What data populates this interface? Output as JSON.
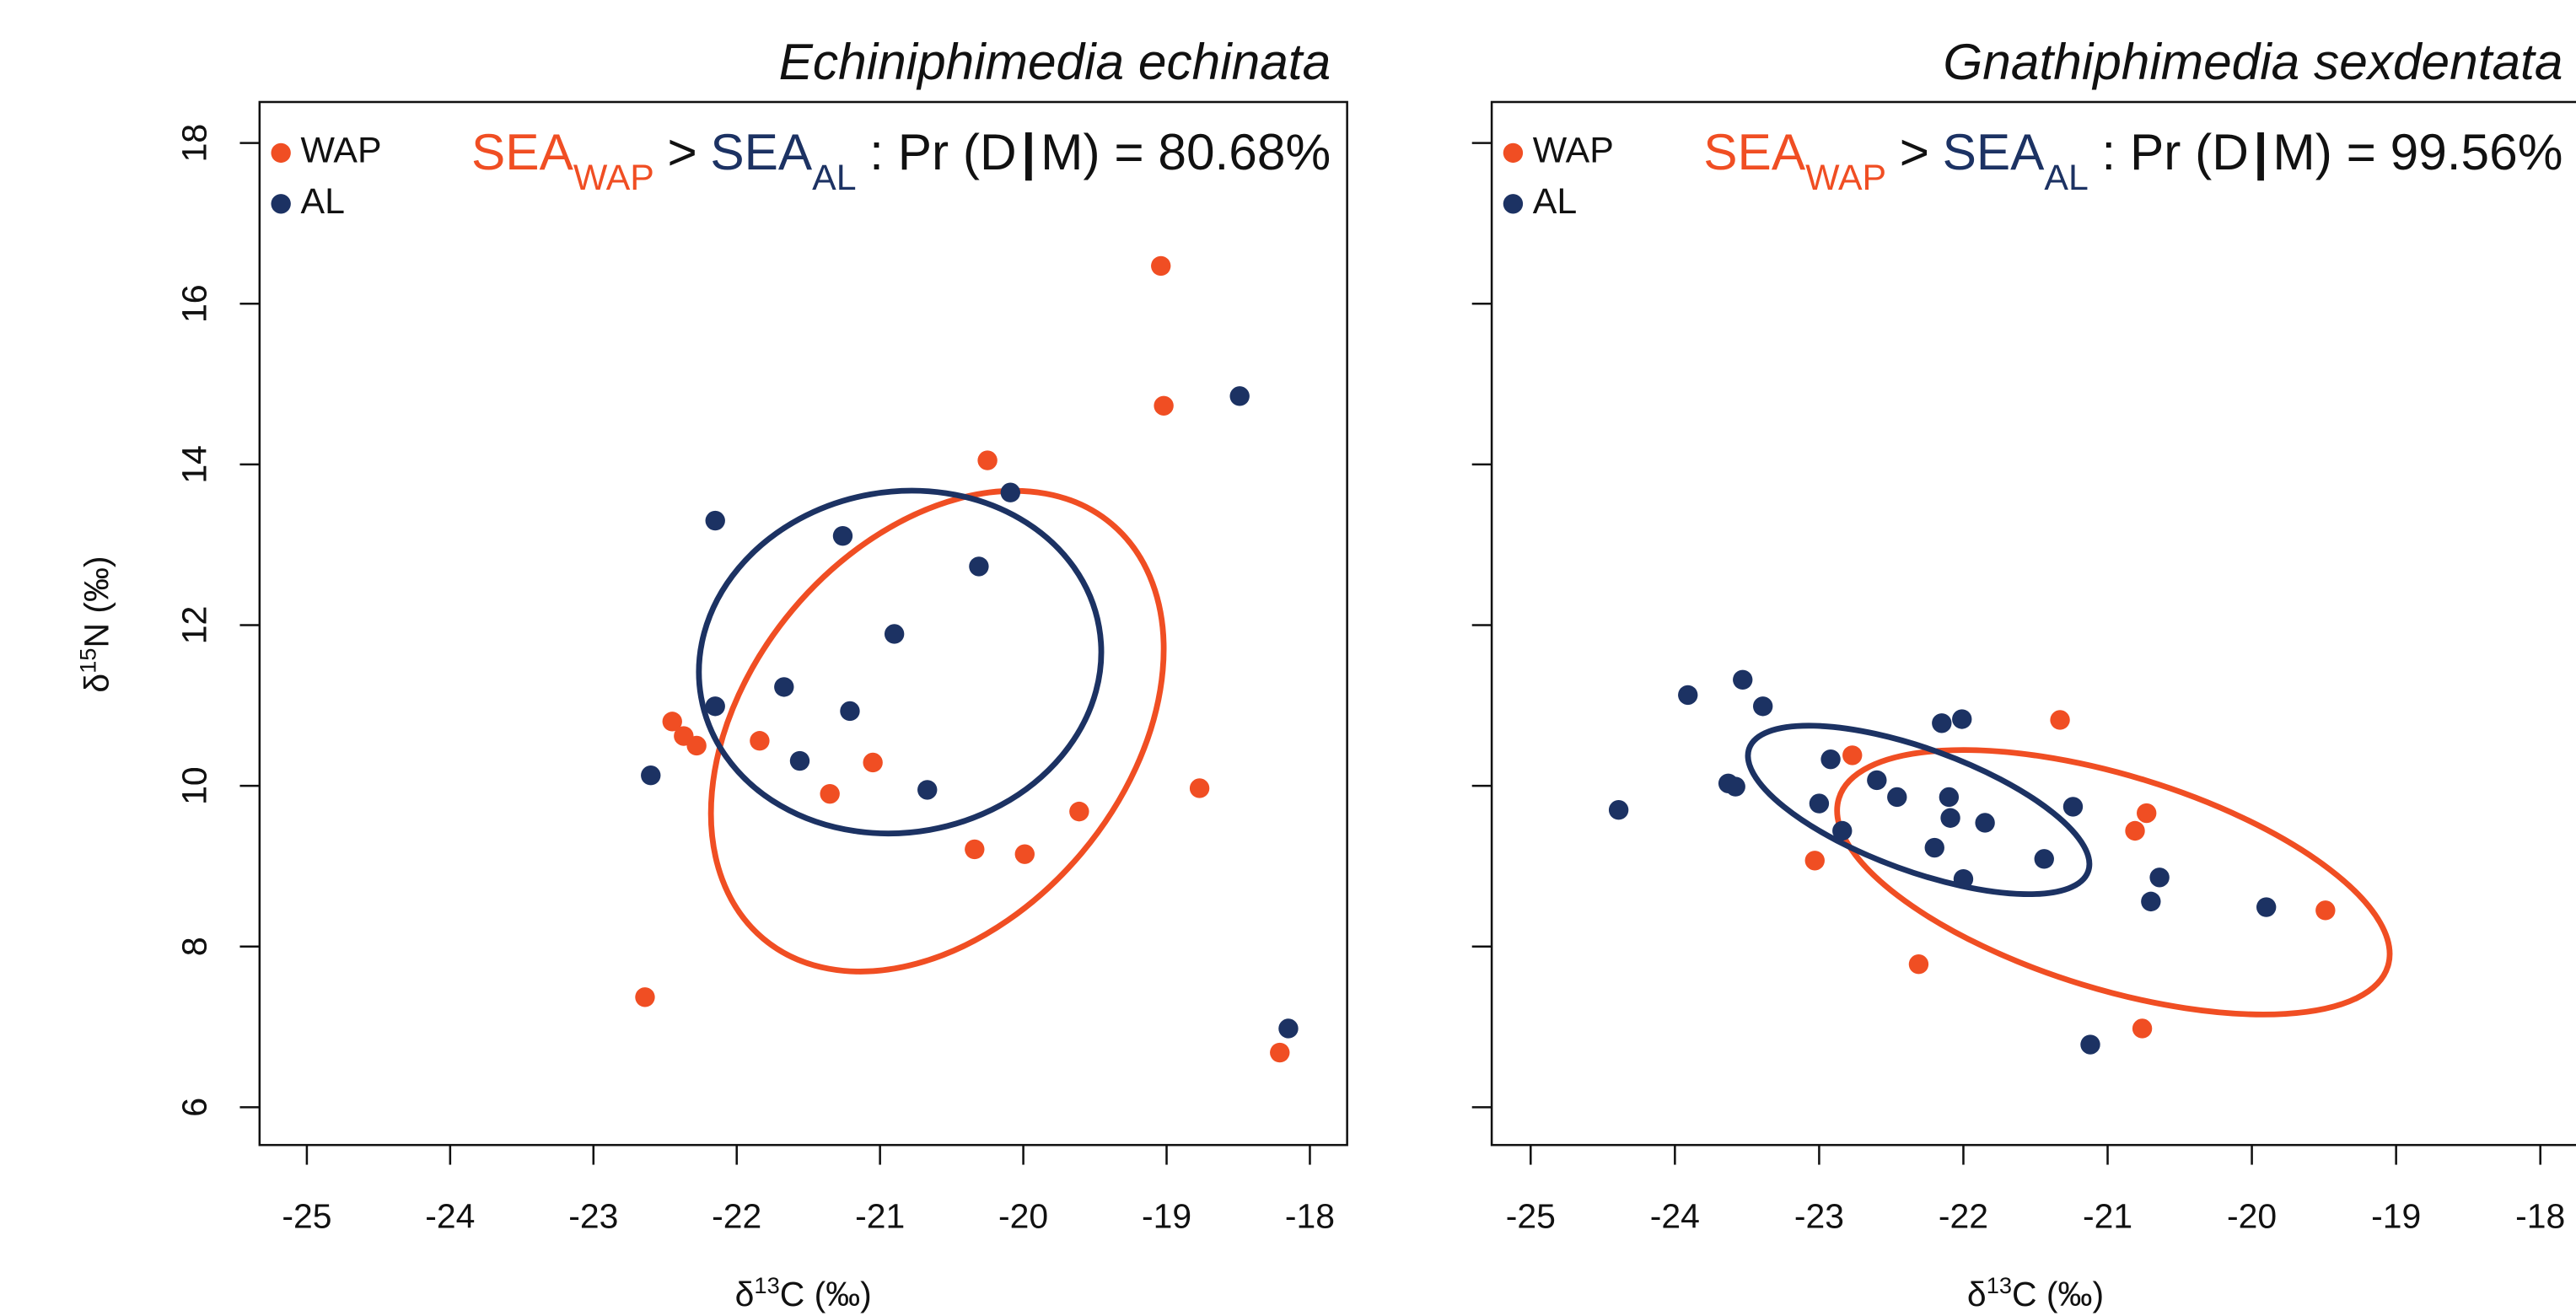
{
  "chart_data": [
    {
      "type": "scatter",
      "title": "Echiniphimedia echinata",
      "annotation": [
        {
          "text": "SEA",
          "color": "#f04e23"
        },
        {
          "text": "WAP",
          "color": "#f04e23",
          "sub": true
        },
        {
          "text": ">"
        },
        {
          "text": "SEA",
          "color": "#1c3263"
        },
        {
          "text": "AL",
          "color": "#1c3263",
          "sub": true
        },
        {
          "text": ": Pr (D"
        },
        {
          "text": "|"
        },
        {
          "text": "M) = 80.68%"
        }
      ],
      "xlabel": [
        "δ",
        "13",
        "C (‰)"
      ],
      "ylabel": [
        "δ",
        "15",
        "N (‰)"
      ],
      "xlim": [
        -25.33,
        -17.74
      ],
      "ylim": [
        5.53,
        18.51
      ],
      "xticks": [
        -25,
        -24,
        -23,
        -22,
        -21,
        -20,
        -19,
        -18
      ],
      "yticks": [
        6,
        8,
        10,
        12,
        14,
        16,
        18
      ],
      "legend": "top-left",
      "series": [
        {
          "name": "WAP",
          "color": "#f04e23",
          "x": [
            -19.04,
            -19.02,
            -20.25,
            -22.45,
            -22.37,
            -22.28,
            -21.84,
            -21.05,
            -21.35,
            -19.61,
            -18.77,
            -20.34,
            -19.99,
            -22.64,
            -18.21
          ],
          "values": [
            16.47,
            14.73,
            14.05,
            10.8,
            10.62,
            10.5,
            10.56,
            10.29,
            9.9,
            9.68,
            9.97,
            9.21,
            9.15,
            7.37,
            6.68
          ],
          "ellipse": {
            "center": [
              -20.6,
              10.68
            ],
            "radii": [
              1.89,
              2.35
            ],
            "angle": -50
          }
        },
        {
          "name": "AL",
          "color": "#1c3263",
          "x": [
            -18.49,
            -20.09,
            -22.15,
            -21.26,
            -20.31,
            -20.9,
            -21.67,
            -21.21,
            -22.15,
            -21.56,
            -20.67,
            -22.6,
            -18.15
          ],
          "values": [
            14.85,
            13.65,
            13.3,
            13.11,
            12.73,
            11.89,
            11.23,
            10.93,
            10.99,
            10.31,
            9.95,
            10.13,
            6.98
          ],
          "ellipse": {
            "center": [
              -20.86,
              11.54
            ],
            "radii": [
              1.41,
              2.12
            ],
            "angle": -10
          }
        }
      ]
    },
    {
      "type": "scatter",
      "title": "Gnathiphimedia sexdentata",
      "annotation": [
        {
          "text": "SEA",
          "color": "#f04e23"
        },
        {
          "text": "WAP",
          "color": "#f04e23",
          "sub": true
        },
        {
          "text": ">"
        },
        {
          "text": "SEA",
          "color": "#1c3263"
        },
        {
          "text": "AL",
          "color": "#1c3263",
          "sub": true
        },
        {
          "text": ": Pr (D"
        },
        {
          "text": "|"
        },
        {
          "text": "M) = 99.56%"
        }
      ],
      "xlabel": [
        "δ",
        "13",
        "C (‰)"
      ],
      "xlim": [
        -25.27,
        -17.73
      ],
      "ylim": [
        5.53,
        18.51
      ],
      "xticks": [
        -25,
        -24,
        -23,
        -22,
        -21,
        -20,
        -19,
        -18
      ],
      "yticks": [
        6,
        8,
        10,
        12,
        14,
        16,
        18
      ],
      "legend": "top-left",
      "series": [
        {
          "name": "WAP",
          "color": "#f04e23",
          "x": [
            -21.33,
            -22.77,
            -20.73,
            -20.81,
            -23.03,
            -19.49,
            -22.31,
            -20.76
          ],
          "values": [
            10.82,
            10.38,
            9.66,
            9.44,
            9.07,
            8.45,
            7.78,
            6.98
          ],
          "ellipse": {
            "center": [
              -20.96,
              8.8
            ],
            "radii": [
              1.99,
              1.33
            ],
            "angle": 17
          }
        },
        {
          "name": "AL",
          "color": "#1c3263",
          "x": [
            -23.53,
            -23.91,
            -23.39,
            -22.15,
            -22.01,
            -22.92,
            -22.6,
            -23.63,
            -23.58,
            -22.46,
            -22.1,
            -23.0,
            -21.24,
            -22.09,
            -21.85,
            -22.84,
            -22.2,
            -21.44,
            -22.0,
            -20.64,
            -20.7,
            -19.9,
            -24.39,
            -21.12
          ],
          "values": [
            11.32,
            11.13,
            10.99,
            10.78,
            10.83,
            10.33,
            10.07,
            10.03,
            9.99,
            9.86,
            9.86,
            9.78,
            9.74,
            9.6,
            9.54,
            9.44,
            9.23,
            9.09,
            8.84,
            8.86,
            8.56,
            8.49,
            9.7,
            6.78
          ],
          "ellipse": {
            "center": [
              -22.31,
              9.7
            ],
            "radii": [
              1.25,
              0.76
            ],
            "angle": 20
          }
        }
      ]
    }
  ]
}
